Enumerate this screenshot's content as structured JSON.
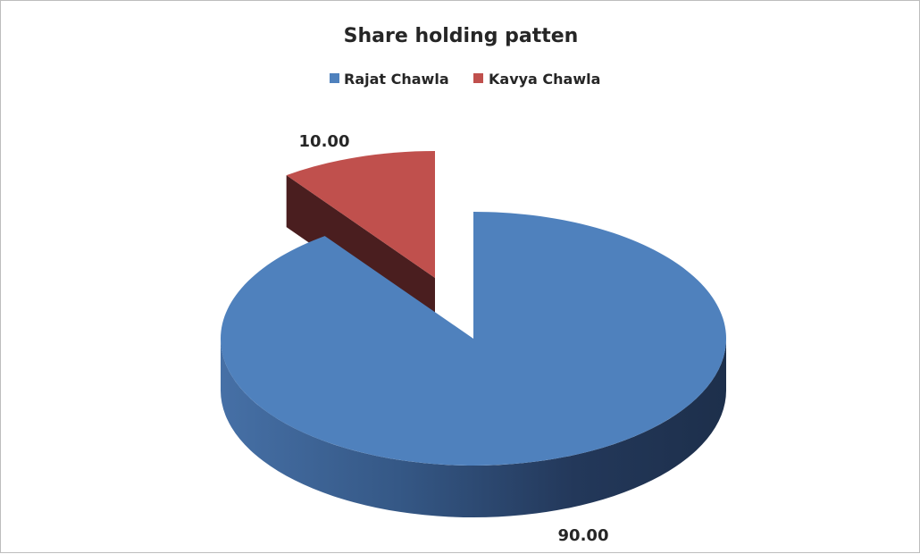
{
  "chart_data": {
    "type": "pie",
    "style": "3d-exploded",
    "title": "Share holding patten",
    "legend_position": "top",
    "categories": [
      "Rajat Chawla",
      "Kavya Chawla"
    ],
    "values": [
      90.0,
      10.0
    ],
    "data_labels": [
      "90.00",
      "10.00"
    ],
    "colors": [
      "#4f81bd",
      "#c0504d"
    ],
    "exploded": [
      "Kavya Chawla"
    ]
  }
}
